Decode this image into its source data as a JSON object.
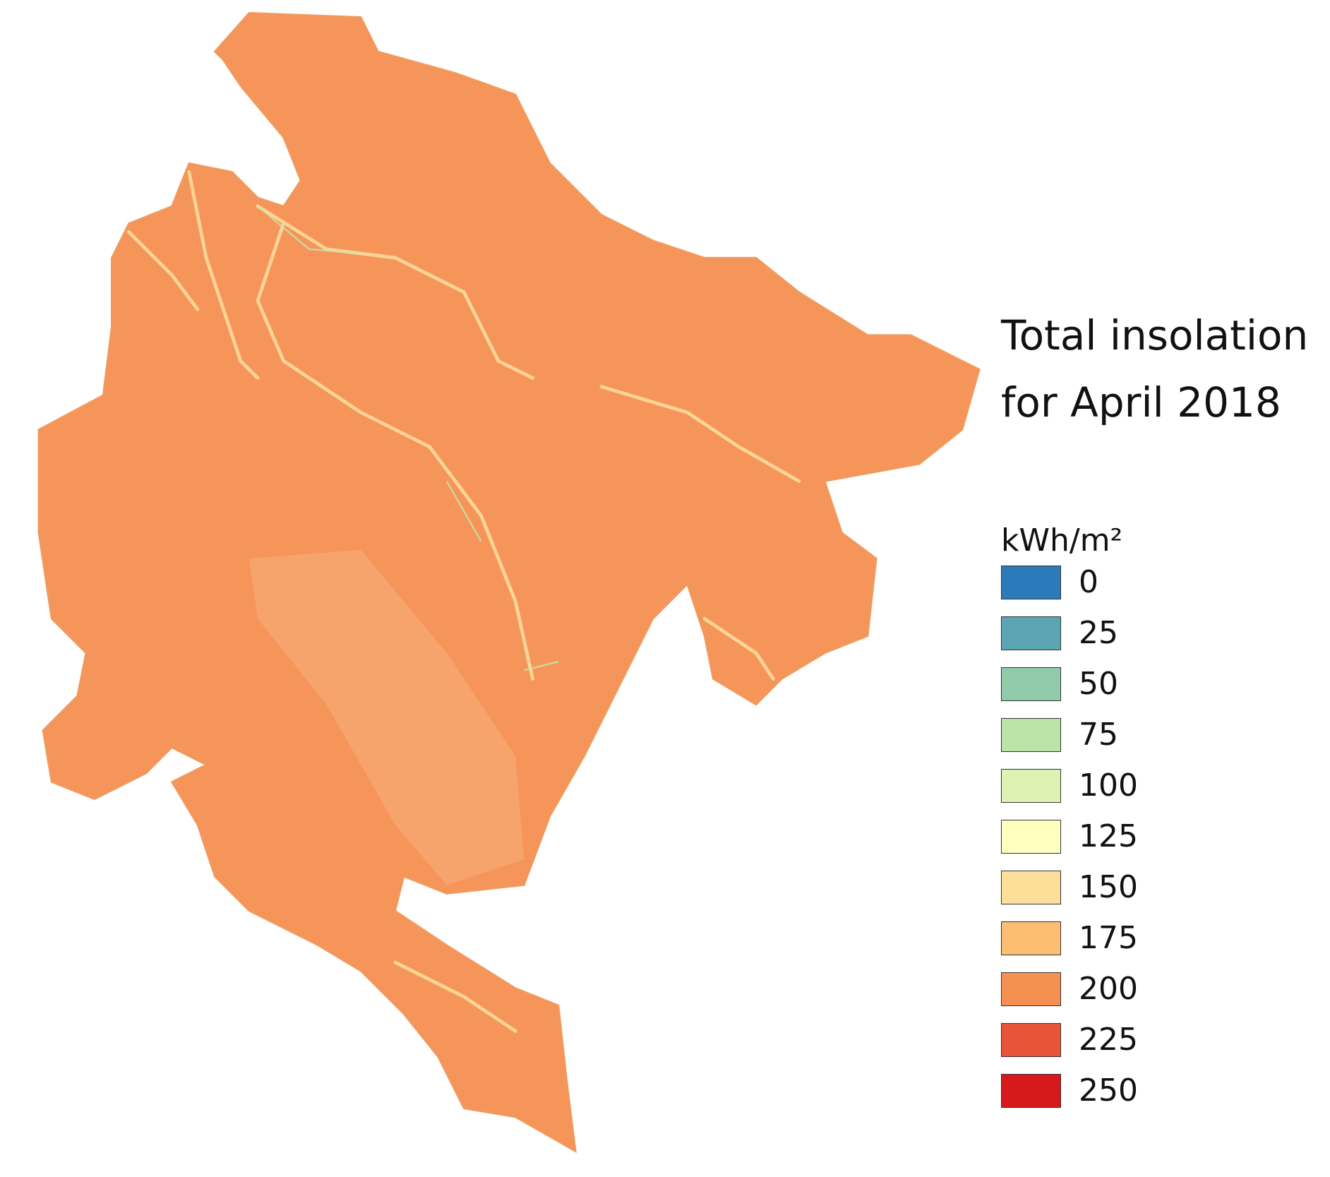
{
  "map": {
    "title": "Total insolation for April 2018",
    "unit": "kWh/m²",
    "legend": [
      {
        "value": 0,
        "color": "#2b7bba"
      },
      {
        "value": 25,
        "color": "#5ca5b2"
      },
      {
        "value": 50,
        "color": "#91cba9"
      },
      {
        "value": 75,
        "color": "#bce4a9"
      },
      {
        "value": 100,
        "color": "#def2b4"
      },
      {
        "value": 125,
        "color": "#ffffc0"
      },
      {
        "value": 150,
        "color": "#fedf99"
      },
      {
        "value": 175,
        "color": "#fdbe74"
      },
      {
        "value": 200,
        "color": "#f59053"
      },
      {
        "value": 225,
        "color": "#e75437"
      },
      {
        "value": 250,
        "color": "#d7191c"
      }
    ]
  }
}
